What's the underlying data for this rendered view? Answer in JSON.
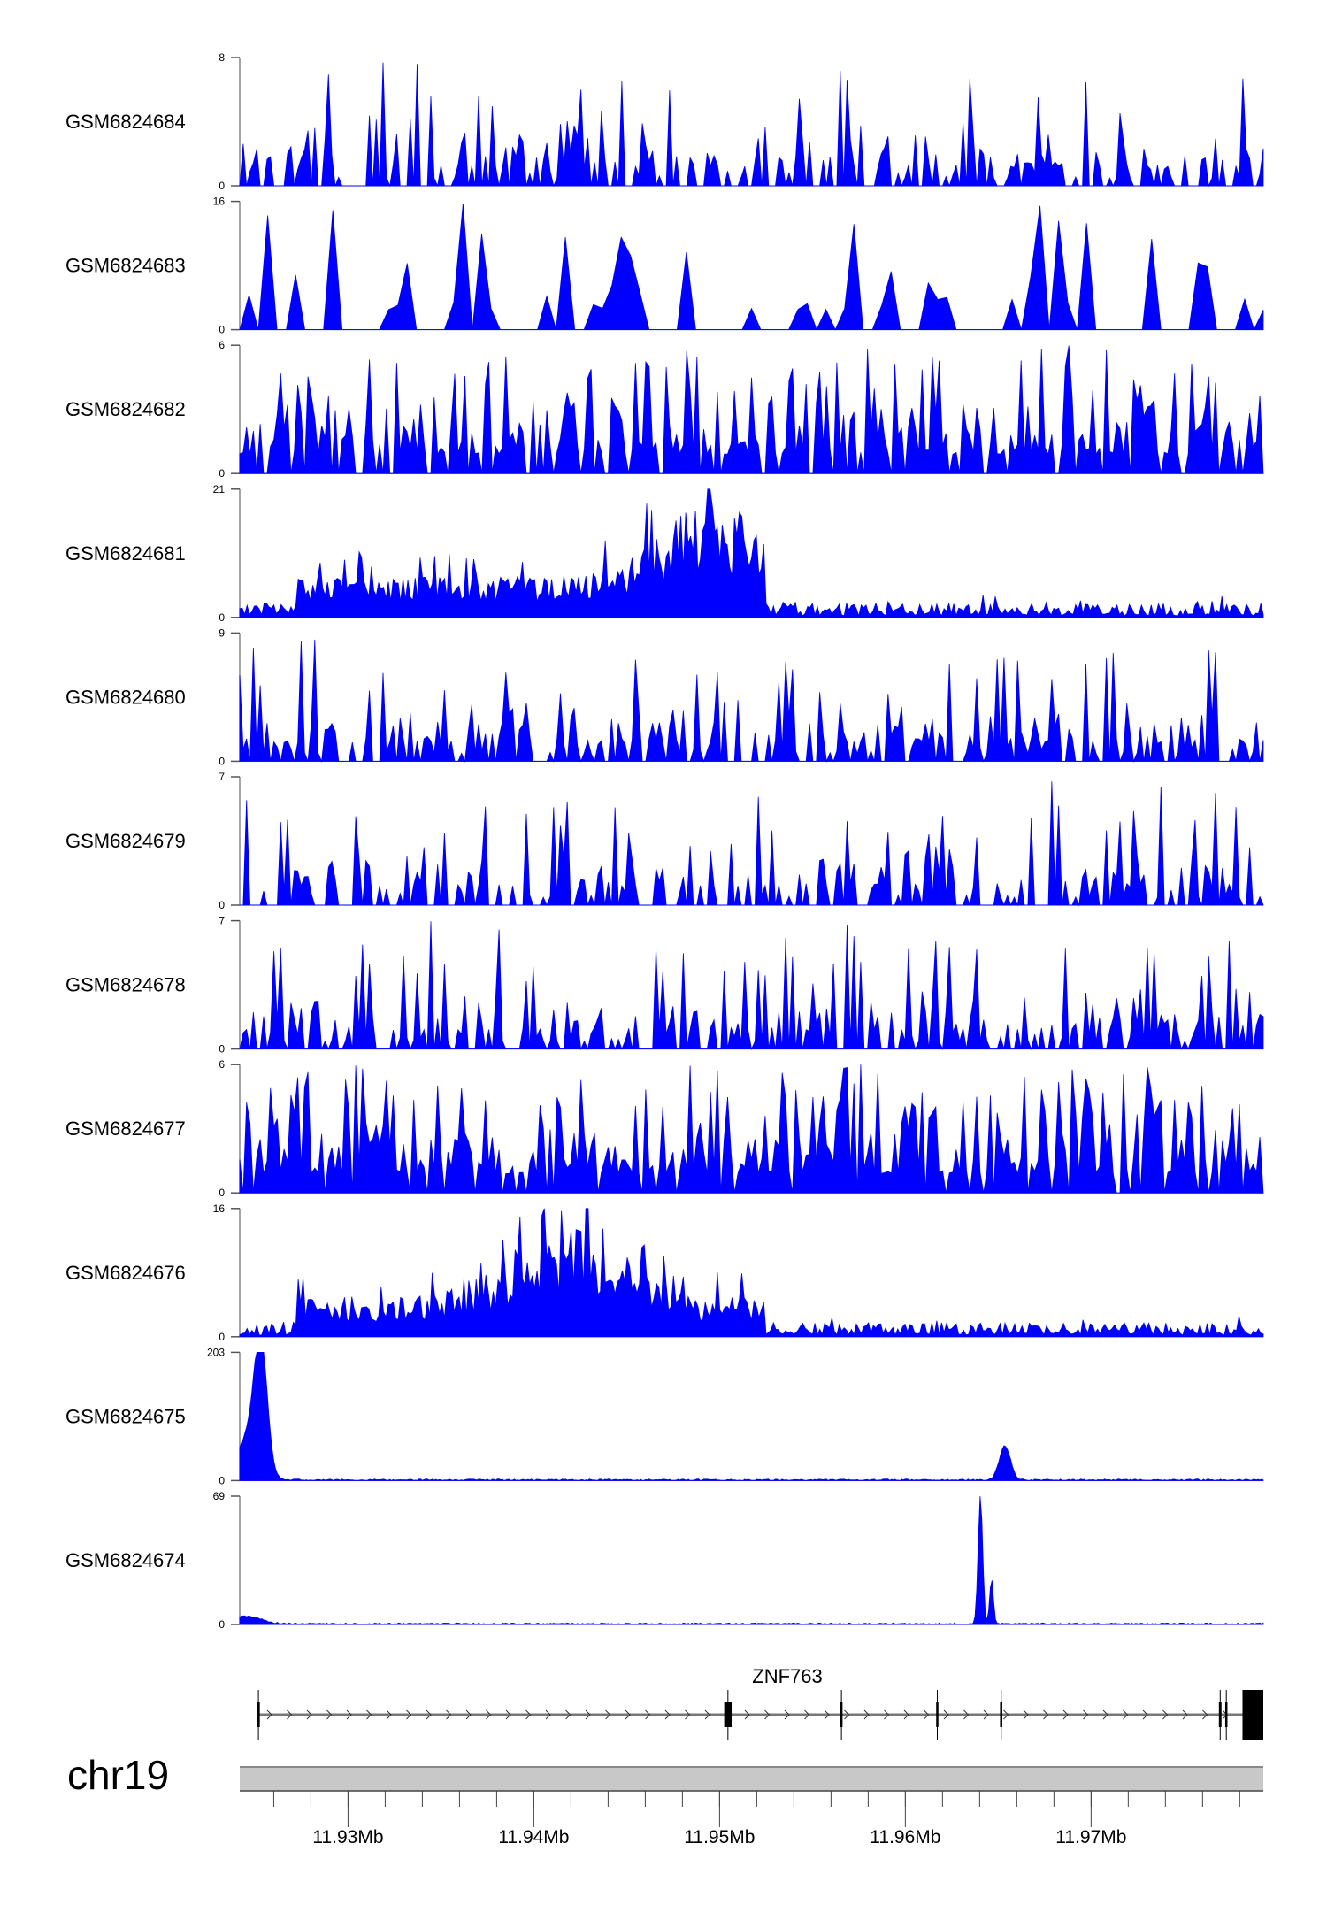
{
  "chart_data": {
    "type": "area",
    "title": "",
    "chromosome": "chr19",
    "xlim": [
      11.92417,
      11.97927
    ],
    "x_unit": "Mb",
    "x_ticks": [
      {
        "value": 11.93,
        "label": "11.93Mb"
      },
      {
        "value": 11.94,
        "label": "11.94Mb"
      },
      {
        "value": 11.95,
        "label": "11.95Mb"
      },
      {
        "value": 11.96,
        "label": "11.96Mb"
      },
      {
        "value": 11.97,
        "label": "11.97Mb"
      }
    ],
    "minor_tick_step": 0.002,
    "fill_color": "#0000ff",
    "tracks": [
      {
        "name": "GSM6824684",
        "ymin": 0,
        "ymax": 8,
        "ymin_label": "0",
        "ymax_label": "8",
        "profile": "spiky",
        "density": 0.55,
        "seed": 11
      },
      {
        "name": "GSM6824683",
        "ymin": 0,
        "ymax": 16,
        "ymin_label": "0",
        "ymax_label": "16",
        "profile": "sparse",
        "density": 0.3,
        "seed": 23
      },
      {
        "name": "GSM6824682",
        "ymin": 0,
        "ymax": 6,
        "ymin_label": "0",
        "ymax_label": "6",
        "profile": "dense",
        "density": 0.8,
        "seed": 37
      },
      {
        "name": "GSM6824681",
        "ymin": 0,
        "ymax": 21,
        "ymin_label": "0",
        "ymax_label": "21",
        "profile": "broad",
        "density": 0.9,
        "seed": 41,
        "enriched_region": [
          11.9272,
          11.9525
        ],
        "enriched_level": 8,
        "summit": 11.9497,
        "summit_value": 20
      },
      {
        "name": "GSM6824680",
        "ymin": 0,
        "ymax": 9,
        "ymin_label": "0",
        "ymax_label": "9",
        "profile": "spiky",
        "density": 0.6,
        "seed": 53
      },
      {
        "name": "GSM6824679",
        "ymin": 0,
        "ymax": 7,
        "ymin_label": "0",
        "ymax_label": "7",
        "profile": "spiky",
        "density": 0.55,
        "seed": 67
      },
      {
        "name": "GSM6824678",
        "ymin": 0,
        "ymax": 7,
        "ymin_label": "0",
        "ymax_label": "7",
        "profile": "spiky",
        "density": 0.6,
        "seed": 71
      },
      {
        "name": "GSM6824677",
        "ymin": 0,
        "ymax": 6,
        "ymin_label": "0",
        "ymax_label": "6",
        "profile": "dense",
        "density": 0.85,
        "seed": 83
      },
      {
        "name": "GSM6824676",
        "ymin": 0,
        "ymax": 16,
        "ymin_label": "0",
        "ymax_label": "16",
        "profile": "broad",
        "density": 0.9,
        "seed": 97,
        "enriched_region": [
          11.9272,
          11.9525
        ],
        "enriched_level": 6,
        "summit": 11.9418,
        "summit_value": 15.5
      },
      {
        "name": "GSM6824675",
        "ymin": 0,
        "ymax": 203,
        "ymin_label": "0",
        "ymax_label": "203",
        "profile": "peaks",
        "seed": 101,
        "peaks": [
          {
            "center": 11.9253,
            "height": 200,
            "width": 0.00035
          },
          {
            "center": 11.9246,
            "height": 65,
            "width": 0.0006
          },
          {
            "center": 11.96536,
            "height": 54,
            "width": 0.0003
          }
        ]
      },
      {
        "name": "GSM6824674",
        "ymin": 0,
        "ymax": 69,
        "ymin_label": "0",
        "ymax_label": "69",
        "profile": "peaks",
        "seed": 113,
        "peaks": [
          {
            "center": 11.96404,
            "height": 69,
            "width": 0.00012
          },
          {
            "center": 11.96464,
            "height": 24,
            "width": 0.0001
          },
          {
            "center": 11.9245,
            "height": 4,
            "width": 0.0008
          }
        ]
      }
    ],
    "gene": {
      "name": "ZNF763",
      "strand": "+",
      "start": 11.92517,
      "end": 11.97927,
      "exons": [
        [
          11.9251,
          11.92525
        ],
        [
          11.95025,
          11.95065
        ],
        [
          11.9565,
          11.95662
        ],
        [
          11.96166,
          11.96178
        ],
        [
          11.9651,
          11.96522
        ],
        [
          11.97688,
          11.97702
        ],
        [
          11.97722,
          11.97734
        ],
        [
          11.97815,
          11.97927
        ]
      ]
    }
  }
}
